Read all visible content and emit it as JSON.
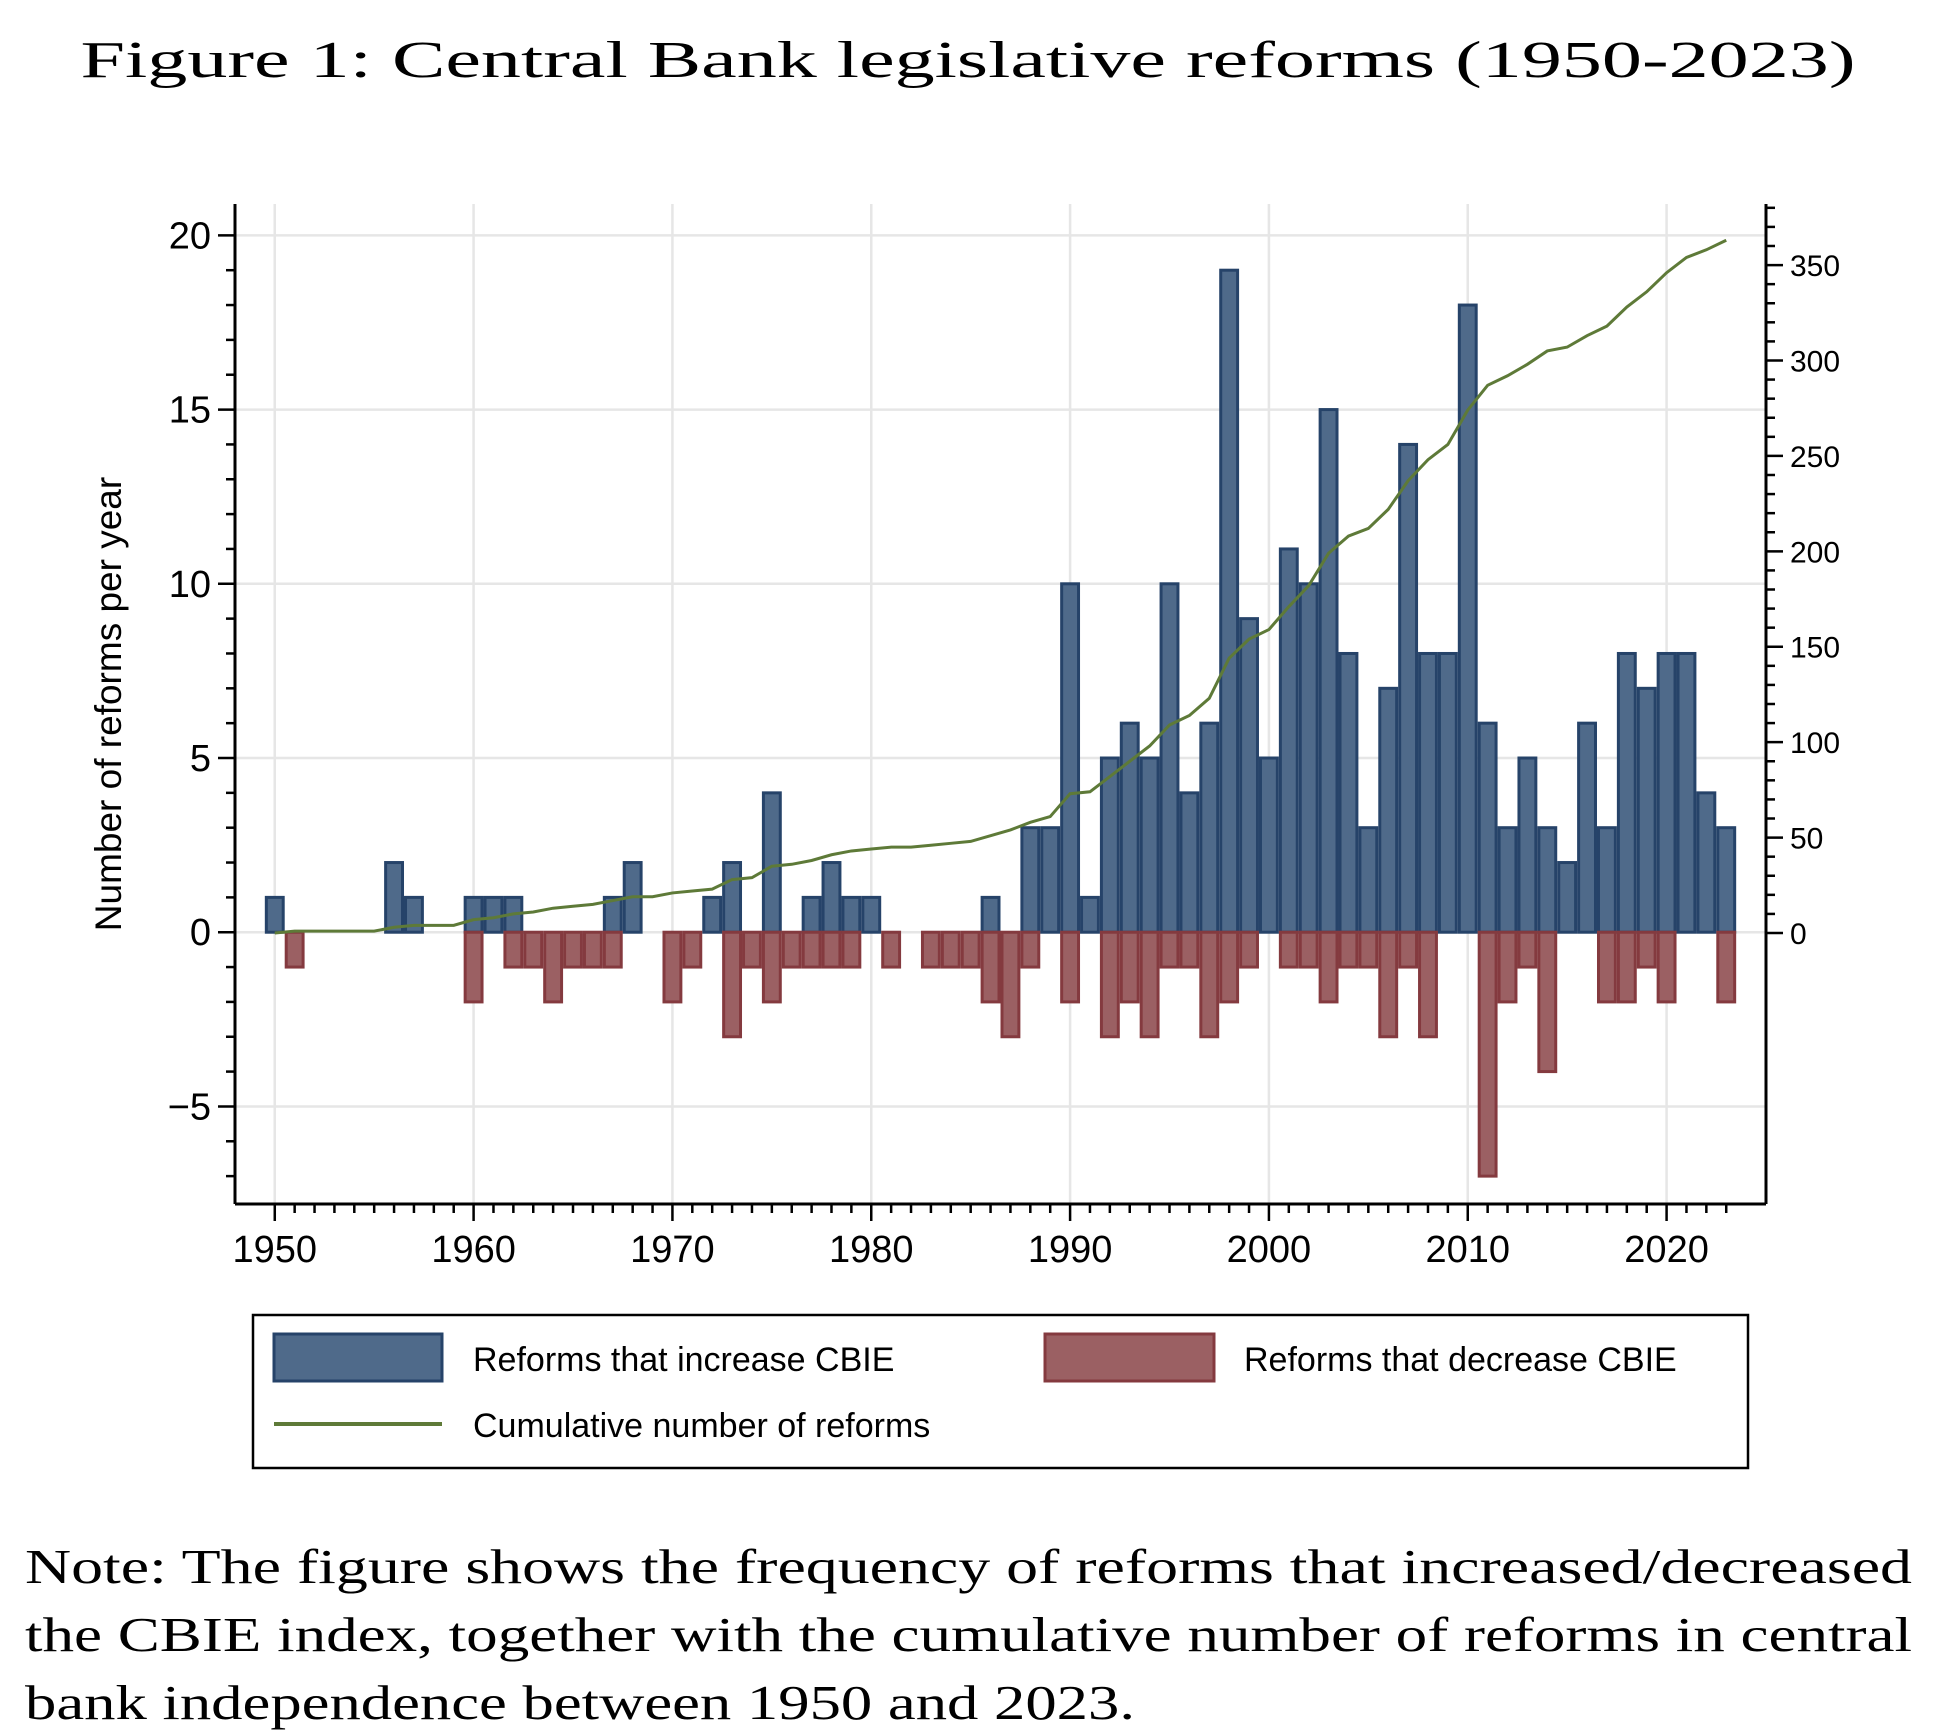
{
  "figure": {
    "title": "Figure 1: Central Bank legislative reforms (1950-2023)",
    "note_lines": [
      "Note: The figure shows the frequency of reforms that increased/decreased",
      "the CBIE index, together with the cumulative number of reforms in central",
      "bank independence between 1950 and 2023."
    ]
  },
  "colors": {
    "increase_fill": "#4f6a8a",
    "increase_stroke": "#264369",
    "decrease_fill": "#9b6063",
    "decrease_stroke": "#843a3f",
    "cumulative_line": "#5e7a38",
    "grid": "#e6e6e6"
  },
  "chart_data": {
    "type": "bar",
    "title": "Figure 1: Central Bank legislative reforms (1950-2023)",
    "xlabel": "",
    "ylabel": "Number of reforms per year",
    "y2label": "",
    "xlim": [
      1948,
      2025
    ],
    "ylim": [
      -7.8,
      20.9
    ],
    "y2lim": [
      -142,
      382
    ],
    "xticks": [
      1950,
      1960,
      1970,
      1980,
      1990,
      2000,
      2010,
      2020
    ],
    "yticks": [
      -5,
      0,
      5,
      10,
      15,
      20
    ],
    "y2ticks": [
      0,
      50,
      100,
      150,
      200,
      250,
      300,
      350
    ],
    "ytick_labels": [
      "−5",
      "0",
      "5",
      "10",
      "15",
      "20"
    ],
    "grid": true,
    "legend_placement": "bottom",
    "years": [
      1950,
      1951,
      1952,
      1953,
      1954,
      1955,
      1956,
      1957,
      1958,
      1959,
      1960,
      1961,
      1962,
      1963,
      1964,
      1965,
      1966,
      1967,
      1968,
      1969,
      1970,
      1971,
      1972,
      1973,
      1974,
      1975,
      1976,
      1977,
      1978,
      1979,
      1980,
      1981,
      1982,
      1983,
      1984,
      1985,
      1986,
      1987,
      1988,
      1989,
      1990,
      1991,
      1992,
      1993,
      1994,
      1995,
      1996,
      1997,
      1998,
      1999,
      2000,
      2001,
      2002,
      2003,
      2004,
      2005,
      2006,
      2007,
      2008,
      2009,
      2010,
      2011,
      2012,
      2013,
      2014,
      2015,
      2016,
      2017,
      2018,
      2019,
      2020,
      2021,
      2022,
      2023
    ],
    "series": [
      {
        "name": "Reforms that increase CBIE",
        "type": "bar",
        "axis": "left",
        "values": [
          1,
          0,
          0,
          0,
          0,
          0,
          2,
          1,
          0,
          0,
          1,
          1,
          1,
          0,
          0,
          0,
          0,
          1,
          2,
          0,
          0,
          0,
          1,
          2,
          0,
          4,
          0,
          1,
          2,
          1,
          1,
          0,
          0,
          0,
          0,
          0,
          1,
          0,
          3,
          3,
          10,
          1,
          5,
          6,
          5,
          10,
          4,
          6,
          19,
          9,
          5,
          11,
          10,
          15,
          8,
          3,
          7,
          14,
          8,
          8,
          18,
          6,
          3,
          5,
          3,
          2,
          6,
          3,
          8,
          7,
          8,
          8,
          4,
          3
        ]
      },
      {
        "name": "Reforms that decrease CBIE",
        "type": "bar",
        "axis": "left",
        "values": [
          0,
          -1,
          0,
          0,
          0,
          0,
          0,
          0,
          0,
          0,
          -2,
          0,
          -1,
          -1,
          -2,
          -1,
          -1,
          -1,
          0,
          0,
          -2,
          -1,
          0,
          -3,
          -1,
          -2,
          -1,
          -1,
          -1,
          -1,
          0,
          -1,
          0,
          -1,
          -1,
          -1,
          -2,
          -3,
          -1,
          0,
          -2,
          0,
          -3,
          -2,
          -3,
          -1,
          -1,
          -3,
          -2,
          -1,
          0,
          -1,
          -1,
          -2,
          -1,
          -1,
          -3,
          -1,
          -3,
          0,
          0,
          -7,
          -2,
          -1,
          -4,
          0,
          0,
          -2,
          -2,
          -1,
          -2,
          0,
          0,
          -2
        ]
      },
      {
        "name": "Cumulative number of reforms",
        "type": "line",
        "axis": "right",
        "values": [
          1,
          2,
          2,
          2,
          2,
          2,
          4,
          5,
          5,
          5,
          8,
          9,
          11,
          12,
          14,
          15,
          16,
          18,
          20,
          20,
          22,
          23,
          24,
          29,
          30,
          36,
          37,
          39,
          42,
          44,
          45,
          46,
          46,
          47,
          48,
          49,
          52,
          55,
          59,
          62,
          74,
          75,
          83,
          91,
          99,
          110,
          115,
          124,
          145,
          155,
          160,
          172,
          183,
          200,
          209,
          213,
          223,
          238,
          249,
          257,
          275,
          288,
          293,
          299,
          306,
          308,
          314,
          319,
          329,
          337,
          347,
          355,
          359,
          364
        ]
      }
    ]
  }
}
